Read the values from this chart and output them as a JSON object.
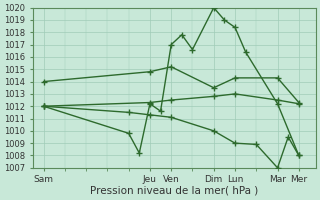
{
  "x_labels": [
    "Sam",
    "Jeu",
    "Ven",
    "Dim",
    "Lun",
    "Mar",
    "Mer"
  ],
  "x_tick_pos": [
    0,
    5,
    6,
    8,
    9,
    11,
    12
  ],
  "xlim": [
    -0.5,
    12.8
  ],
  "series": [
    {
      "name": "line1_upper",
      "points": [
        [
          0,
          1014
        ],
        [
          5,
          1014.8
        ],
        [
          6,
          1015.2
        ],
        [
          8,
          1013.5
        ],
        [
          9,
          1014.3
        ],
        [
          11,
          1014.3
        ],
        [
          12,
          1012.3
        ]
      ]
    },
    {
      "name": "line2_peak",
      "points": [
        [
          0,
          1012
        ],
        [
          4,
          1009.8
        ],
        [
          4.5,
          1008.2
        ],
        [
          5,
          1012.2
        ],
        [
          5.5,
          1011.6
        ],
        [
          6,
          1017.0
        ],
        [
          6.5,
          1017.8
        ],
        [
          7,
          1016.6
        ],
        [
          8,
          1020.0
        ],
        [
          8.5,
          1019.0
        ],
        [
          9,
          1018.4
        ],
        [
          9.5,
          1016.4
        ],
        [
          11,
          1012.2
        ],
        [
          12,
          1008.0
        ]
      ]
    },
    {
      "name": "line3_mid",
      "points": [
        [
          0,
          1012
        ],
        [
          5,
          1012.3
        ],
        [
          6,
          1012.5
        ],
        [
          8,
          1012.8
        ],
        [
          9,
          1013.0
        ],
        [
          11,
          1012.5
        ],
        [
          12,
          1012.2
        ]
      ]
    },
    {
      "name": "line4_low",
      "points": [
        [
          0,
          1012
        ],
        [
          4,
          1011.5
        ],
        [
          5,
          1011.3
        ],
        [
          6,
          1011.1
        ],
        [
          8,
          1010.0
        ],
        [
          9,
          1009.0
        ],
        [
          10,
          1008.9
        ],
        [
          11,
          1007.0
        ],
        [
          11.5,
          1009.5
        ],
        [
          12,
          1008.0
        ]
      ]
    }
  ],
  "ylim": [
    1007,
    1020
  ],
  "ytick_min": 1007,
  "ytick_max": 1020,
  "line_color": "#2d6a2d",
  "bg_color": "#c8e8d8",
  "grid_color": "#a0ccb8",
  "xlabel": "Pression niveau de la mer( hPa )",
  "xlabel_fontsize": 7.5
}
